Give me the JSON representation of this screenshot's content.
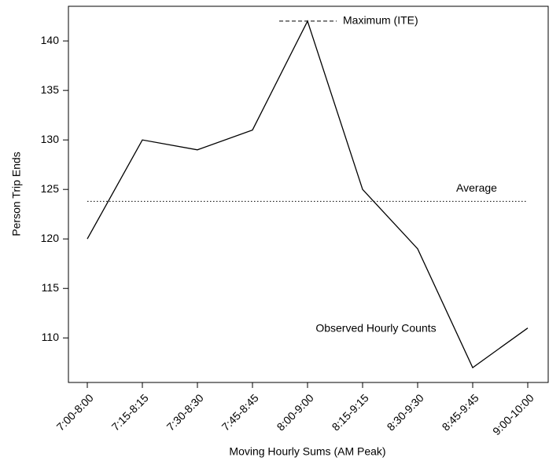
{
  "chart_data": {
    "type": "line",
    "x_label": "Moving Hourly Sums (AM Peak)",
    "y_label": "Person Trip Ends",
    "categories": [
      "7:00-8:00",
      "7:15-8:15",
      "7:30-8:30",
      "7:45-8:45",
      "8:00-9:00",
      "8:15-9:15",
      "8:30-9:30",
      "8:45-9:45",
      "9:00-10:00"
    ],
    "series": [
      {
        "name": "Observed Hourly Counts",
        "color": "#000000",
        "values": [
          120,
          130,
          129,
          131,
          142,
          125,
          119,
          107,
          111
        ]
      }
    ],
    "reference_lines": [
      {
        "label": "Average",
        "value": 123.8,
        "style": "dotted"
      },
      {
        "label": "Maximum (ITE)",
        "value": 142,
        "style": "dashed"
      }
    ],
    "ylim": [
      105.5,
      143.5
    ],
    "yticks": [
      110,
      115,
      120,
      125,
      130,
      135,
      140
    ]
  }
}
